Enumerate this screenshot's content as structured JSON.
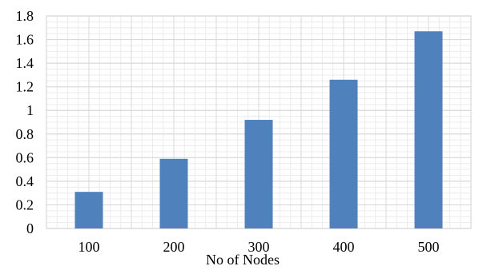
{
  "chart_data": {
    "type": "bar",
    "title": "",
    "xlabel": "No of Nodes",
    "ylabel": "",
    "categories": [
      "100",
      "200",
      "300",
      "400",
      "500"
    ],
    "series": [
      {
        "values": [
          0.31,
          0.59,
          0.92,
          1.26,
          1.67
        ]
      }
    ],
    "ylim": [
      0,
      1.8
    ],
    "y_ticks": [
      0,
      0.2,
      0.4,
      0.6,
      0.8,
      1,
      1.2,
      1.4,
      1.6,
      1.8
    ],
    "grid": true,
    "legend": "none",
    "bar_color": "#4f81bd",
    "major_grid_color": "#d9d9d9",
    "minor_grid_color": "#ececec"
  }
}
